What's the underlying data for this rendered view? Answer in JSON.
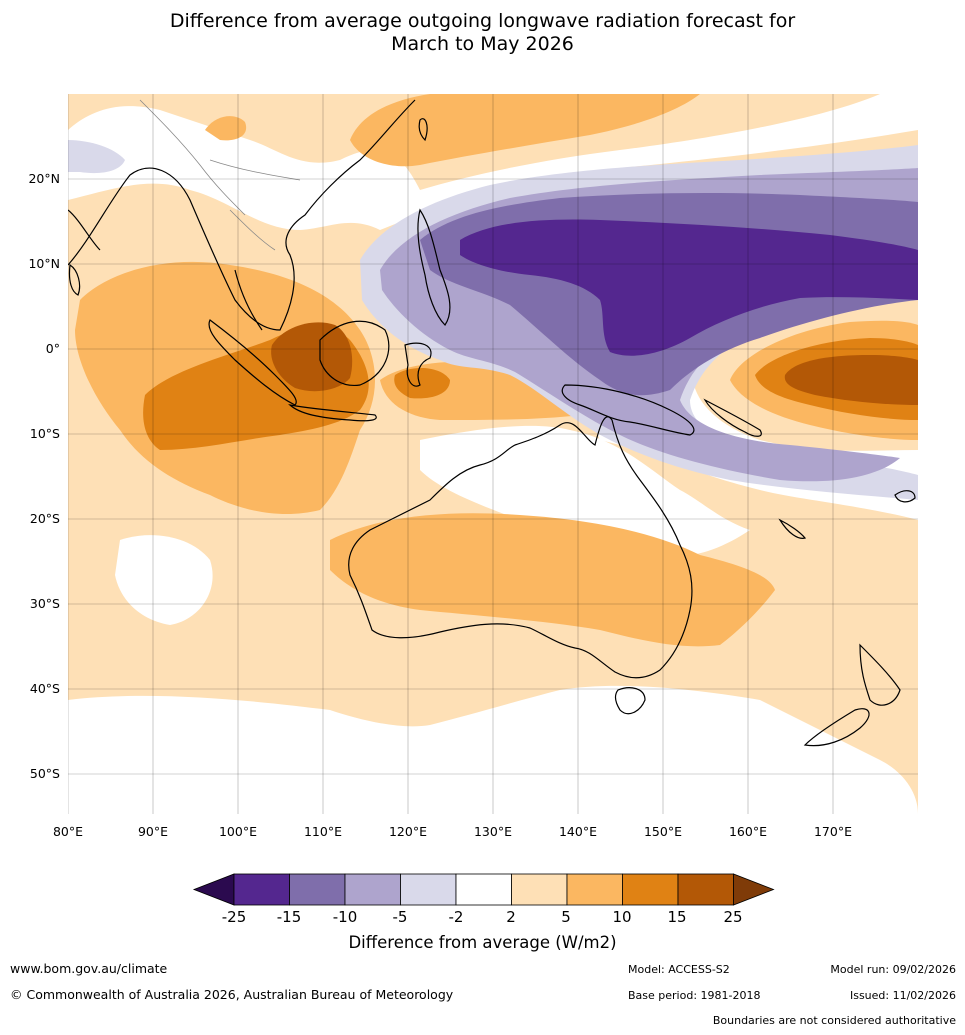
{
  "title_line1": "Difference from average outgoing longwave radiation forecast for",
  "title_line2": "March to May 2026",
  "lat_labels": [
    "20°N",
    "10°N",
    "0°",
    "10°S",
    "20°S",
    "30°S",
    "40°S",
    "50°S"
  ],
  "lon_labels": [
    "80°E",
    "90°E",
    "100°E",
    "110°E",
    "120°E",
    "130°E",
    "140°E",
    "150°E",
    "160°E",
    "170°E"
  ],
  "colorbar": {
    "ticks": [
      "-25",
      "-15",
      "-10",
      "-5",
      "-2",
      "2",
      "5",
      "10",
      "15",
      "25"
    ],
    "colors": [
      "#2b0a4f",
      "#54278f",
      "#7f6eab",
      "#aea4cd",
      "#d9d9ea",
      "#ffffff",
      "#fee0b6",
      "#fbb761",
      "#e08214",
      "#b35806",
      "#7f3b08"
    ],
    "title": "Difference from average (W/m2)"
  },
  "footer": {
    "website": "www.bom.gov.au/climate",
    "copyright": "© Commonwealth of Australia 2026, Australian Bureau of Meteorology",
    "model": "Model: ACCESS-S2",
    "base_period": "Base period: 1981-2018",
    "model_run": "Model run: 09/02/2026",
    "issued": "Issued: 11/02/2026",
    "boundaries_note": "Boundaries are not considered authoritative"
  }
}
